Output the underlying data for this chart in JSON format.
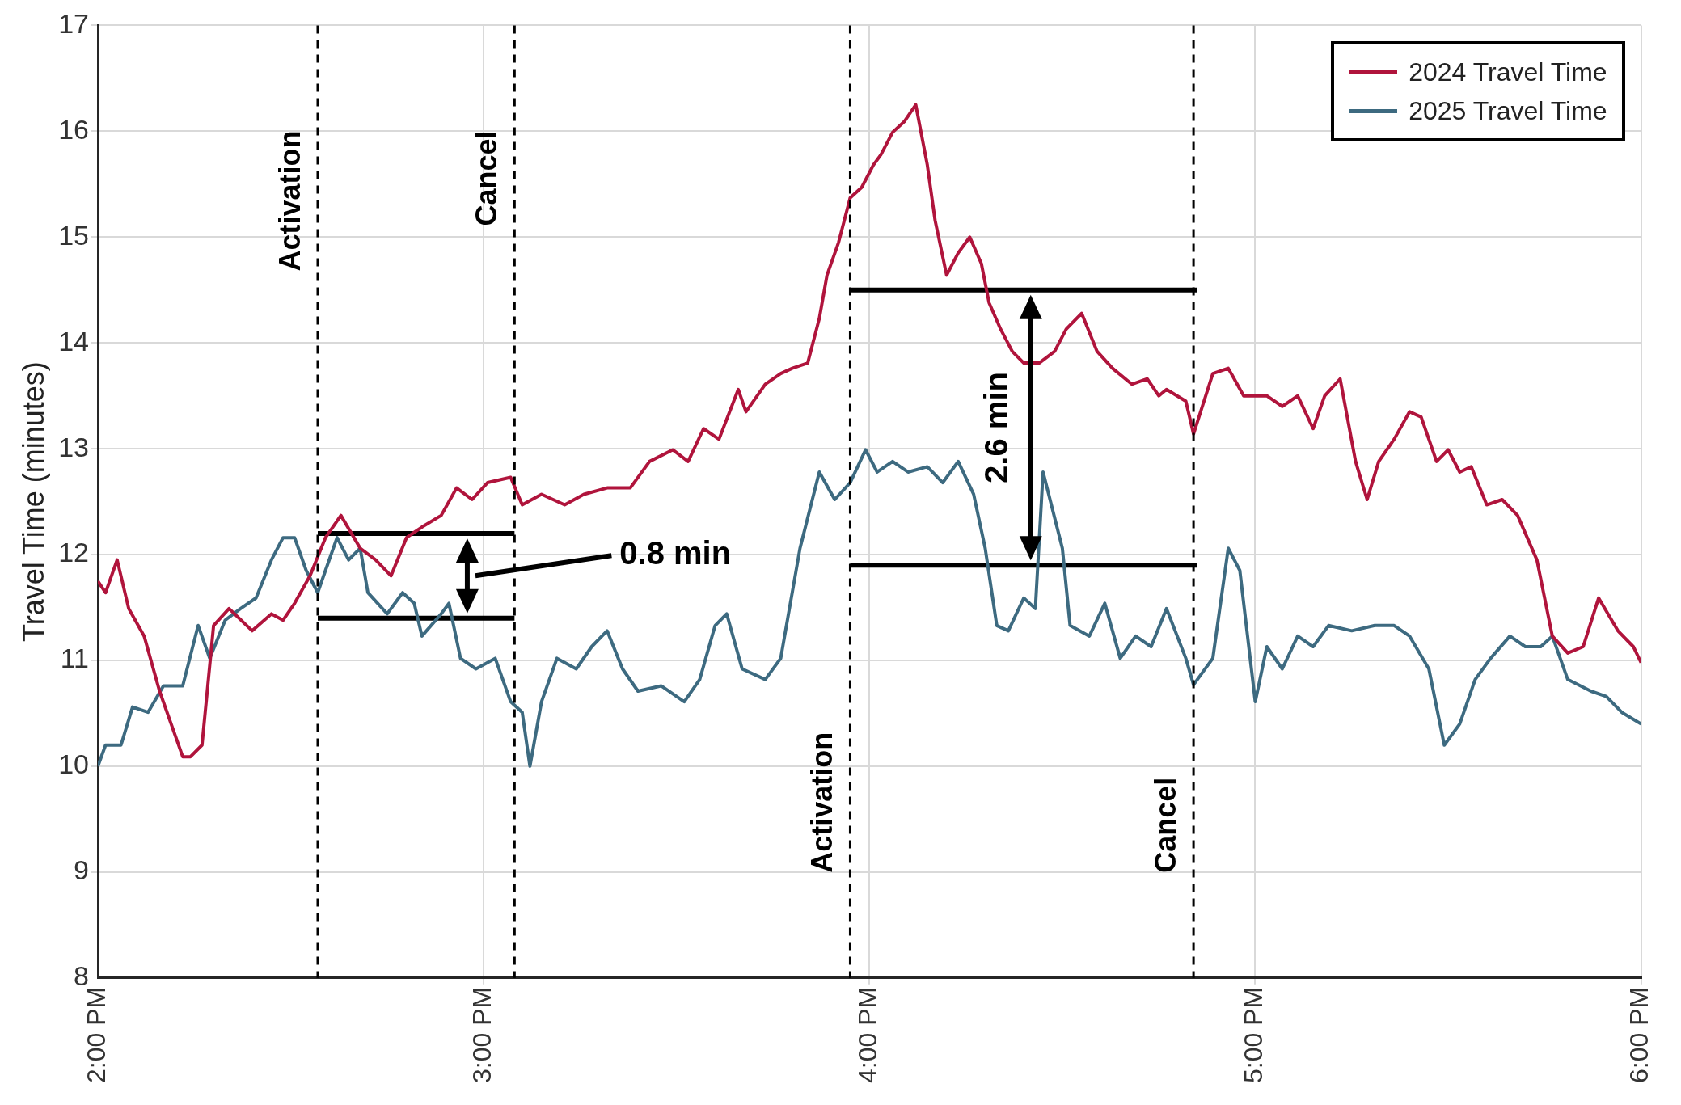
{
  "chart_data": {
    "type": "line",
    "ylabel": "Travel Time (minutes)",
    "xlim": [
      14,
      18
    ],
    "xticks": [
      {
        "value": 14,
        "label": "2:00 PM"
      },
      {
        "value": 15,
        "label": "3:00 PM"
      },
      {
        "value": 16,
        "label": "4:00 PM"
      },
      {
        "value": 17,
        "label": "5:00 PM"
      },
      {
        "value": 18,
        "label": "6:00 PM"
      }
    ],
    "ylim": [
      8,
      17
    ],
    "yticks": [
      8,
      9,
      10,
      11,
      12,
      13,
      14,
      15,
      16,
      17
    ],
    "grid": true,
    "legend": "top right",
    "marker": "none",
    "line_style": "solid",
    "series": [
      {
        "name": "2024 Travel Time",
        "color": "#b0143c",
        "x": [
          14.0,
          14.02,
          14.05,
          14.08,
          14.12,
          14.16,
          14.19,
          14.22,
          14.24,
          14.27,
          14.3,
          14.34,
          14.4,
          14.45,
          14.48,
          14.51,
          14.55,
          14.59,
          14.63,
          14.68,
          14.72,
          14.76,
          14.8,
          14.84,
          14.89,
          14.93,
          14.97,
          15.01,
          15.07,
          15.1,
          15.15,
          15.21,
          15.26,
          15.32,
          15.38,
          15.43,
          15.49,
          15.53,
          15.57,
          15.61,
          15.66,
          15.68,
          15.73,
          15.77,
          15.8,
          15.84,
          15.87,
          15.89,
          15.92,
          15.95,
          15.98,
          16.01,
          16.03,
          16.06,
          16.09,
          16.12,
          16.15,
          16.17,
          16.2,
          16.23,
          16.26,
          16.29,
          16.31,
          16.34,
          16.37,
          16.4,
          16.44,
          16.48,
          16.51,
          16.55,
          16.59,
          16.63,
          16.68,
          16.72,
          16.75,
          16.77,
          16.82,
          16.84,
          16.89,
          16.93,
          16.97,
          17.03,
          17.07,
          17.11,
          17.15,
          17.18,
          17.22,
          17.26,
          17.29,
          17.32,
          17.36,
          17.4,
          17.43,
          17.47,
          17.5,
          17.53,
          17.56,
          17.6,
          17.64,
          17.68,
          17.73,
          17.77,
          17.81,
          17.85,
          17.89,
          17.94,
          17.98,
          18.0
        ],
        "values": [
          11.75,
          11.64,
          11.95,
          11.49,
          11.23,
          10.71,
          10.4,
          10.09,
          10.09,
          10.2,
          11.33,
          11.49,
          11.28,
          11.44,
          11.38,
          11.54,
          11.8,
          12.16,
          12.37,
          12.06,
          11.95,
          11.8,
          12.16,
          12.26,
          12.37,
          12.63,
          12.52,
          12.68,
          12.73,
          12.47,
          12.57,
          12.47,
          12.57,
          12.63,
          12.63,
          12.88,
          12.99,
          12.88,
          13.19,
          13.09,
          13.56,
          13.35,
          13.61,
          13.71,
          13.76,
          13.81,
          14.23,
          14.64,
          14.95,
          15.37,
          15.47,
          15.68,
          15.78,
          15.99,
          16.09,
          16.25,
          15.68,
          15.16,
          14.64,
          14.85,
          15.0,
          14.75,
          14.38,
          14.13,
          13.92,
          13.81,
          13.81,
          13.92,
          14.13,
          14.28,
          13.92,
          13.76,
          13.61,
          13.66,
          13.5,
          13.56,
          13.45,
          13.14,
          13.71,
          13.76,
          13.5,
          13.5,
          13.4,
          13.5,
          13.19,
          13.5,
          13.66,
          12.88,
          12.52,
          12.88,
          13.09,
          13.35,
          13.3,
          12.88,
          12.99,
          12.78,
          12.83,
          12.47,
          12.52,
          12.37,
          11.95,
          11.23,
          11.07,
          11.13,
          11.59,
          11.28,
          11.13,
          10.98
        ]
      },
      {
        "name": "2025 Travel Time",
        "color": "#3d6a80",
        "x": [
          14.0,
          14.02,
          14.06,
          14.09,
          14.13,
          14.17,
          14.22,
          14.26,
          14.29,
          14.33,
          14.37,
          14.41,
          14.45,
          14.48,
          14.51,
          14.54,
          14.57,
          14.59,
          14.62,
          14.65,
          14.68,
          14.7,
          14.75,
          14.79,
          14.82,
          14.84,
          14.89,
          14.91,
          14.94,
          14.98,
          15.03,
          15.07,
          15.1,
          15.12,
          15.15,
          15.19,
          15.24,
          15.28,
          15.32,
          15.36,
          15.4,
          15.46,
          15.52,
          15.56,
          15.6,
          15.63,
          15.67,
          15.73,
          15.77,
          15.82,
          15.87,
          15.91,
          15.95,
          15.99,
          16.02,
          16.06,
          16.1,
          16.15,
          16.19,
          16.23,
          16.27,
          16.3,
          16.33,
          16.36,
          16.4,
          16.43,
          16.45,
          16.5,
          16.52,
          16.57,
          16.61,
          16.65,
          16.69,
          16.73,
          16.77,
          16.82,
          16.84,
          16.89,
          16.93,
          16.96,
          17.0,
          17.03,
          17.07,
          17.11,
          17.15,
          17.19,
          17.25,
          17.31,
          17.36,
          17.4,
          17.45,
          17.49,
          17.53,
          17.57,
          17.61,
          17.66,
          17.7,
          17.74,
          17.77,
          17.81,
          17.87,
          17.91,
          17.95,
          18.0
        ],
        "values": [
          10.0,
          10.2,
          10.2,
          10.56,
          10.51,
          10.76,
          10.76,
          11.33,
          11.02,
          11.38,
          11.49,
          11.59,
          11.95,
          12.16,
          12.16,
          11.85,
          11.64,
          11.85,
          12.16,
          11.95,
          12.06,
          11.64,
          11.44,
          11.64,
          11.54,
          11.23,
          11.44,
          11.54,
          11.02,
          10.92,
          11.02,
          10.61,
          10.51,
          10.0,
          10.61,
          11.02,
          10.92,
          11.13,
          11.28,
          10.92,
          10.71,
          10.76,
          10.61,
          10.82,
          11.33,
          11.44,
          10.92,
          10.82,
          11.02,
          12.06,
          12.78,
          12.52,
          12.68,
          12.99,
          12.78,
          12.88,
          12.78,
          12.83,
          12.68,
          12.88,
          12.57,
          12.06,
          11.33,
          11.28,
          11.59,
          11.49,
          12.78,
          12.06,
          11.33,
          11.23,
          11.54,
          11.02,
          11.23,
          11.13,
          11.49,
          11.02,
          10.77,
          11.02,
          12.06,
          11.85,
          10.61,
          11.13,
          10.92,
          11.23,
          11.13,
          11.33,
          11.28,
          11.33,
          11.33,
          11.23,
          10.92,
          10.2,
          10.4,
          10.82,
          11.02,
          11.23,
          11.13,
          11.13,
          11.23,
          10.82,
          10.71,
          10.66,
          10.51,
          10.4
        ]
      },
      {
        "color": "#000000",
        "x": [
          14.57,
          15.08
        ],
        "values": [
          12.2,
          12.2
        ]
      },
      {
        "color": "#000000",
        "x": [
          14.57,
          15.08
        ],
        "values": [
          11.4,
          11.4
        ]
      },
      {
        "color": "#000000",
        "x": [
          15.95,
          16.85
        ],
        "values": [
          14.5,
          14.5
        ]
      },
      {
        "color": "#000000",
        "x": [
          15.95,
          16.85
        ],
        "values": [
          11.9,
          11.9
        ]
      }
    ],
    "ref_lines": [
      {
        "axis": "x",
        "value": 14.57,
        "label": "Activation",
        "color": "#000000",
        "line_style": "dashed"
      },
      {
        "axis": "x",
        "value": 15.08,
        "label": "Cancel",
        "color": "#000000",
        "line_style": "dashed"
      },
      {
        "axis": "x",
        "value": 15.95,
        "label": "Activation",
        "color": "#000000",
        "line_style": "dashed"
      },
      {
        "axis": "x",
        "value": 16.84,
        "label": "Cancel",
        "color": "#000000",
        "line_style": "dashed"
      }
    ],
    "annotations": [
      "0.8 min",
      "2.6 min"
    ]
  }
}
